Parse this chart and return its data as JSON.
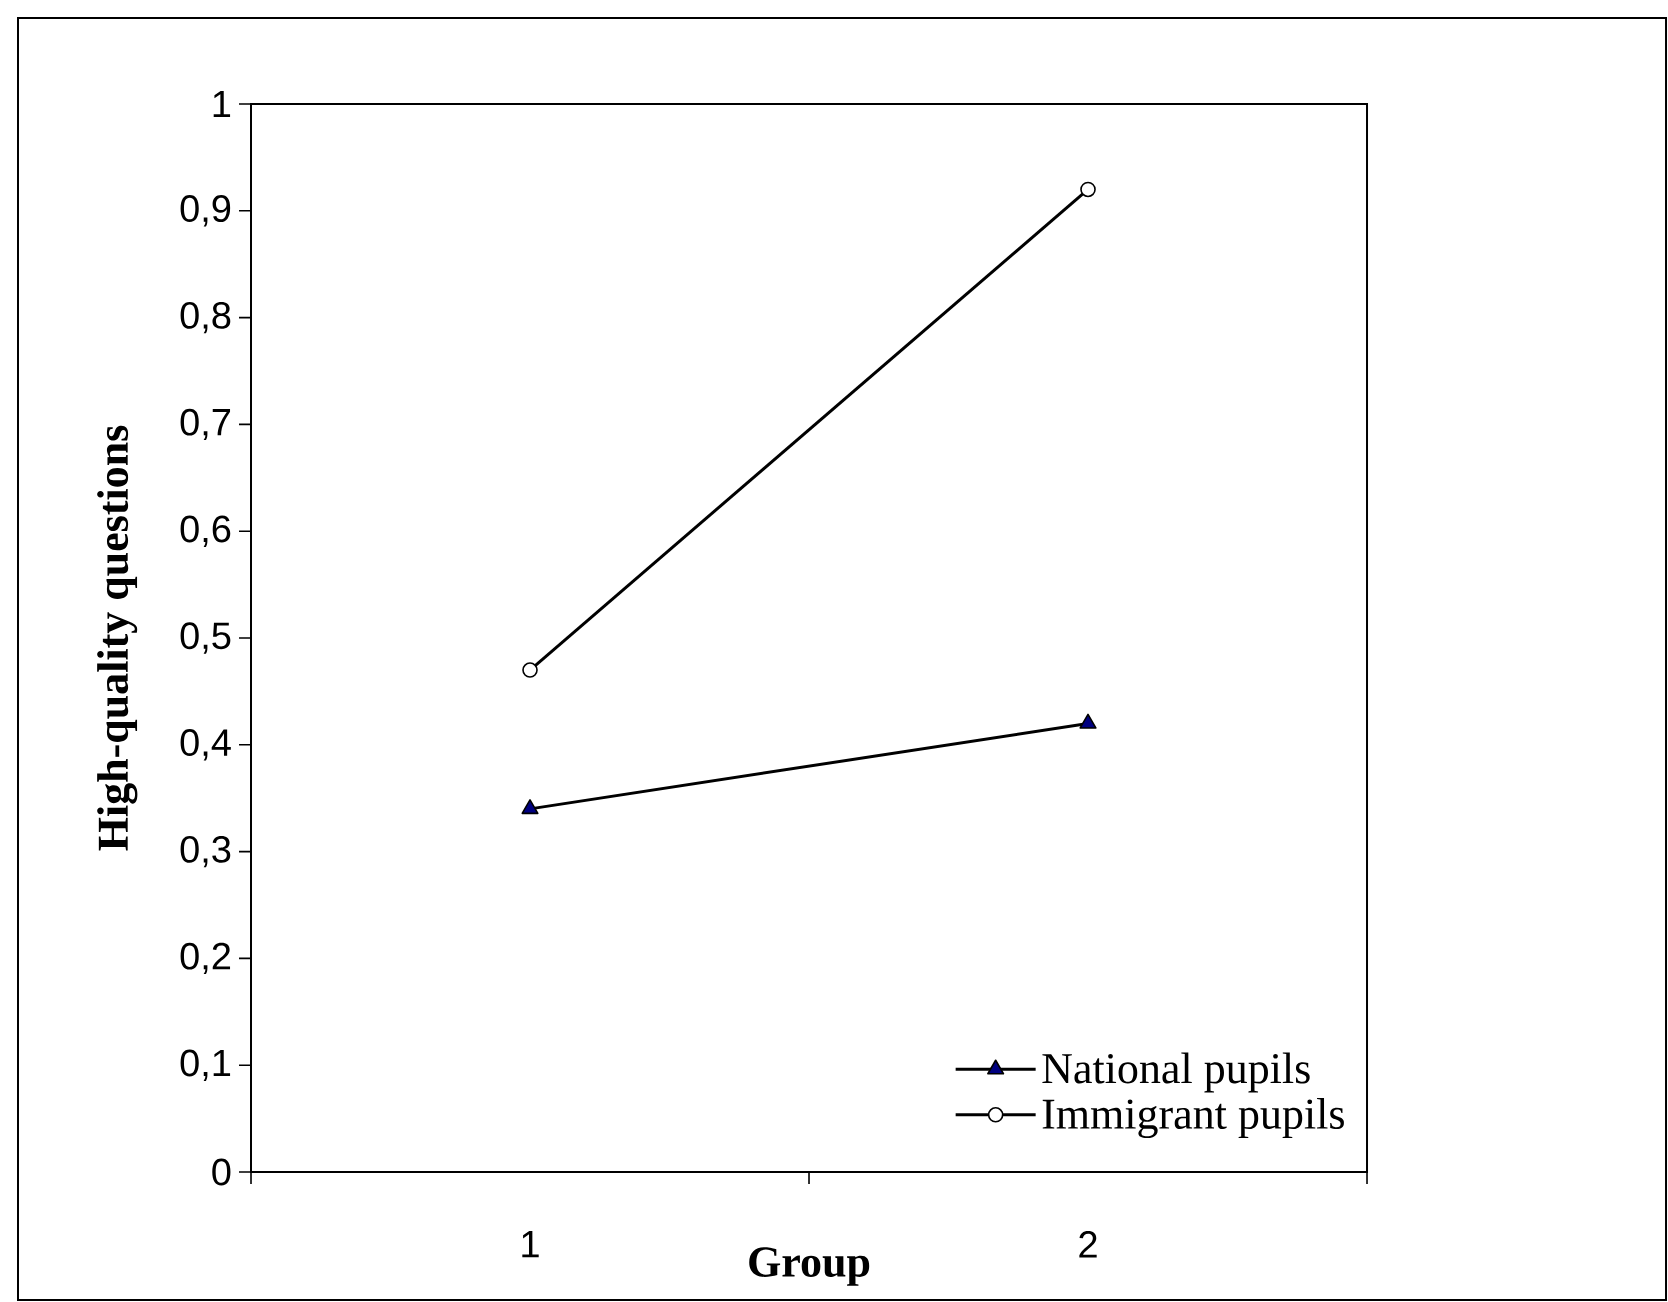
{
  "chart_data": {
    "type": "line",
    "xlabel": "Group",
    "ylabel": "High-quality questions",
    "categories": [
      "1",
      "2"
    ],
    "series": [
      {
        "name": "National pupils",
        "color": "#000000",
        "marker": "triangle",
        "values": [
          0.34,
          0.42
        ]
      },
      {
        "name": "Immigrant pupils",
        "color": "#000000",
        "marker": "circle",
        "values": [
          0.47,
          0.92
        ]
      }
    ],
    "ylim": [
      0,
      1
    ],
    "yticks": [
      {
        "value": 0,
        "label": "0"
      },
      {
        "value": 0.1,
        "label": "0,1"
      },
      {
        "value": 0.2,
        "label": "0,2"
      },
      {
        "value": 0.3,
        "label": "0,3"
      },
      {
        "value": 0.4,
        "label": "0,4"
      },
      {
        "value": 0.5,
        "label": "0,5"
      },
      {
        "value": 0.6,
        "label": "0,6"
      },
      {
        "value": 0.7,
        "label": "0,7"
      },
      {
        "value": 0.8,
        "label": "0,8"
      },
      {
        "value": 0.9,
        "label": "0,9"
      },
      {
        "value": 1,
        "label": "1"
      }
    ],
    "grid": false,
    "legend": "bottom right",
    "line_style": "solid"
  }
}
